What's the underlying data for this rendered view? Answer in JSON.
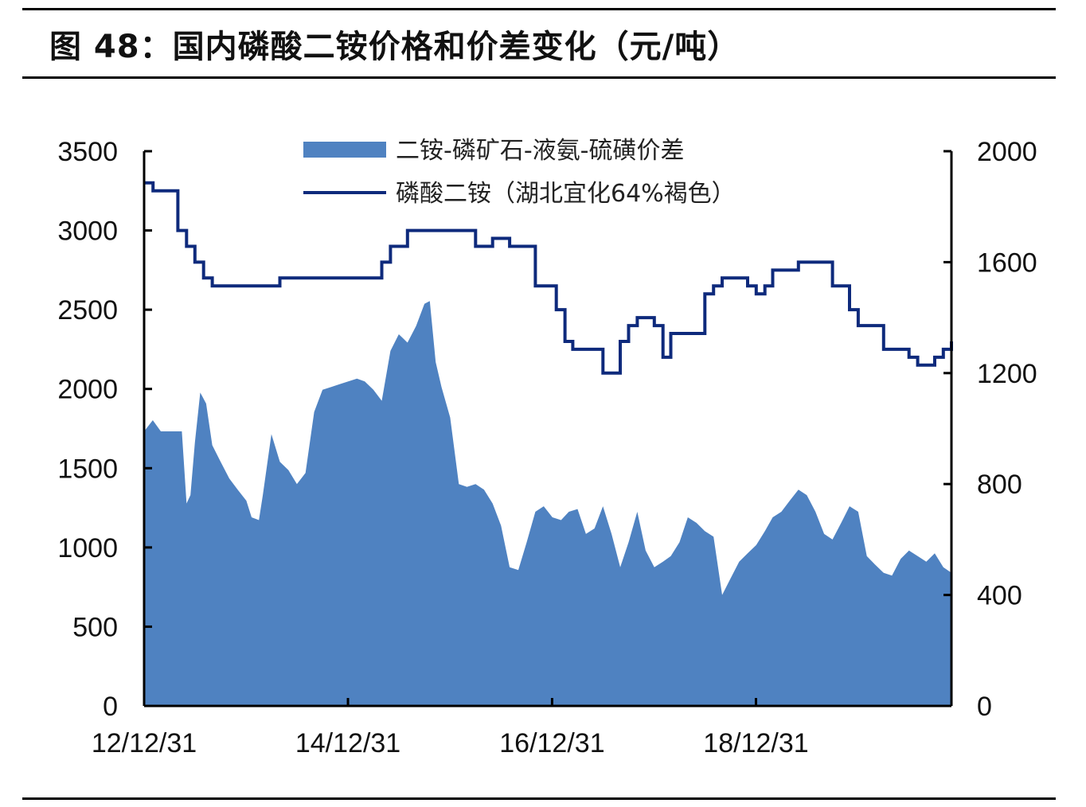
{
  "figure": {
    "title": "图 48：国内磷酸二铵价格和价差变化（元/吨）"
  },
  "colors": {
    "area": "#4f82c1",
    "line": "#0e2a7c",
    "axis": "#000000"
  },
  "chart_data": {
    "type": "area",
    "x_tick_labels": [
      "12/12/31",
      "14/12/31",
      "16/12/31",
      "18/12/31"
    ],
    "x_tick_dates": [
      "2012-12-31",
      "2014-12-31",
      "2016-12-31",
      "2018-12-31"
    ],
    "x_range": [
      "2012-12-31",
      "2020-11-30"
    ],
    "y_left": {
      "range": [
        0,
        3500
      ],
      "ticks": [
        "0",
        "500",
        "1000",
        "1500",
        "2000",
        "2500",
        "3000",
        "3500"
      ]
    },
    "y_right": {
      "range": [
        0,
        2000
      ],
      "ticks": [
        "0",
        "400",
        "800",
        "1200",
        "1600",
        "2000"
      ]
    },
    "legend": "top-center",
    "grid": false,
    "series": [
      {
        "name": "二铵-磷矿石-液氨-硫磺价差",
        "kind": "area",
        "axis": "right",
        "points": [
          [
            "2012-12-31",
            990
          ],
          [
            "2013-01-31",
            1030
          ],
          [
            "2013-03-01",
            990
          ],
          [
            "2013-05-15",
            990
          ],
          [
            "2013-06-01",
            730
          ],
          [
            "2013-06-15",
            760
          ],
          [
            "2013-07-01",
            950
          ],
          [
            "2013-07-20",
            1130
          ],
          [
            "2013-08-10",
            1090
          ],
          [
            "2013-09-01",
            940
          ],
          [
            "2013-10-01",
            880
          ],
          [
            "2013-11-01",
            820
          ],
          [
            "2013-12-01",
            780
          ],
          [
            "2014-01-01",
            740
          ],
          [
            "2014-01-20",
            680
          ],
          [
            "2014-02-15",
            670
          ],
          [
            "2014-03-01",
            760
          ],
          [
            "2014-04-01",
            980
          ],
          [
            "2014-05-01",
            880
          ],
          [
            "2014-06-01",
            850
          ],
          [
            "2014-07-01",
            800
          ],
          [
            "2014-08-01",
            840
          ],
          [
            "2014-09-01",
            1060
          ],
          [
            "2014-10-01",
            1140
          ],
          [
            "2014-11-01",
            1150
          ],
          [
            "2014-12-01",
            1160
          ],
          [
            "2015-01-01",
            1170
          ],
          [
            "2015-02-01",
            1180
          ],
          [
            "2015-03-01",
            1170
          ],
          [
            "2015-04-01",
            1140
          ],
          [
            "2015-05-01",
            1100
          ],
          [
            "2015-06-01",
            1280
          ],
          [
            "2015-07-01",
            1340
          ],
          [
            "2015-08-01",
            1310
          ],
          [
            "2015-09-01",
            1370
          ],
          [
            "2015-10-01",
            1450
          ],
          [
            "2015-10-20",
            1460
          ],
          [
            "2015-11-10",
            1240
          ],
          [
            "2015-12-01",
            1150
          ],
          [
            "2016-01-01",
            1040
          ],
          [
            "2016-02-01",
            800
          ],
          [
            "2016-03-01",
            790
          ],
          [
            "2016-04-01",
            800
          ],
          [
            "2016-05-01",
            780
          ],
          [
            "2016-06-01",
            730
          ],
          [
            "2016-07-01",
            650
          ],
          [
            "2016-08-01",
            500
          ],
          [
            "2016-09-01",
            490
          ],
          [
            "2016-10-01",
            590
          ],
          [
            "2016-11-01",
            700
          ],
          [
            "2016-12-01",
            720
          ],
          [
            "2017-01-01",
            680
          ],
          [
            "2017-02-01",
            670
          ],
          [
            "2017-03-01",
            700
          ],
          [
            "2017-04-01",
            710
          ],
          [
            "2017-05-01",
            620
          ],
          [
            "2017-06-01",
            640
          ],
          [
            "2017-07-01",
            720
          ],
          [
            "2017-08-01",
            620
          ],
          [
            "2017-09-01",
            500
          ],
          [
            "2017-10-01",
            590
          ],
          [
            "2017-11-01",
            700
          ],
          [
            "2017-12-01",
            560
          ],
          [
            "2018-01-01",
            500
          ],
          [
            "2018-02-01",
            520
          ],
          [
            "2018-03-01",
            540
          ],
          [
            "2018-04-01",
            590
          ],
          [
            "2018-05-01",
            680
          ],
          [
            "2018-06-01",
            660
          ],
          [
            "2018-07-01",
            630
          ],
          [
            "2018-08-01",
            610
          ],
          [
            "2018-09-01",
            400
          ],
          [
            "2018-10-01",
            460
          ],
          [
            "2018-11-01",
            520
          ],
          [
            "2018-12-01",
            550
          ],
          [
            "2019-01-01",
            580
          ],
          [
            "2019-02-01",
            630
          ],
          [
            "2019-03-01",
            680
          ],
          [
            "2019-04-01",
            700
          ],
          [
            "2019-05-01",
            740
          ],
          [
            "2019-06-01",
            780
          ],
          [
            "2019-07-01",
            760
          ],
          [
            "2019-08-01",
            700
          ],
          [
            "2019-09-01",
            620
          ],
          [
            "2019-10-01",
            600
          ],
          [
            "2019-11-01",
            660
          ],
          [
            "2019-12-01",
            720
          ],
          [
            "2020-01-01",
            700
          ],
          [
            "2020-02-01",
            540
          ],
          [
            "2020-03-01",
            510
          ],
          [
            "2020-04-01",
            480
          ],
          [
            "2020-05-01",
            470
          ],
          [
            "2020-06-01",
            530
          ],
          [
            "2020-07-01",
            560
          ],
          [
            "2020-08-01",
            540
          ],
          [
            "2020-09-01",
            520
          ],
          [
            "2020-10-01",
            550
          ],
          [
            "2020-11-01",
            500
          ],
          [
            "2020-11-30",
            480
          ]
        ]
      },
      {
        "name": "磷酸二铵（湖北宜化64%褐色）",
        "kind": "line",
        "axis": "left",
        "points": [
          [
            "2012-12-31",
            3300
          ],
          [
            "2013-02-01",
            3250
          ],
          [
            "2013-05-01",
            3000
          ],
          [
            "2013-06-01",
            2900
          ],
          [
            "2013-07-01",
            2800
          ],
          [
            "2013-08-01",
            2700
          ],
          [
            "2013-09-01",
            2650
          ],
          [
            "2014-04-01",
            2650
          ],
          [
            "2014-05-01",
            2700
          ],
          [
            "2015-04-01",
            2700
          ],
          [
            "2015-05-01",
            2800
          ],
          [
            "2015-06-01",
            2900
          ],
          [
            "2015-08-01",
            3000
          ],
          [
            "2016-03-01",
            3000
          ],
          [
            "2016-04-01",
            2900
          ],
          [
            "2016-06-01",
            2950
          ],
          [
            "2016-08-01",
            2900
          ],
          [
            "2016-10-01",
            2900
          ],
          [
            "2016-11-01",
            2650
          ],
          [
            "2016-12-15",
            2650
          ],
          [
            "2017-01-15",
            2500
          ],
          [
            "2017-02-15",
            2300
          ],
          [
            "2017-03-15",
            2250
          ],
          [
            "2017-05-01",
            2250
          ],
          [
            "2017-06-01",
            2250
          ],
          [
            "2017-07-01",
            2100
          ],
          [
            "2017-08-01",
            2100
          ],
          [
            "2017-09-01",
            2300
          ],
          [
            "2017-10-01",
            2400
          ],
          [
            "2017-11-01",
            2450
          ],
          [
            "2018-01-01",
            2400
          ],
          [
            "2018-02-01",
            2200
          ],
          [
            "2018-03-01",
            2350
          ],
          [
            "2018-06-01",
            2350
          ],
          [
            "2018-07-01",
            2600
          ],
          [
            "2018-08-01",
            2650
          ],
          [
            "2018-09-01",
            2700
          ],
          [
            "2018-11-01",
            2700
          ],
          [
            "2018-12-01",
            2650
          ],
          [
            "2019-01-01",
            2600
          ],
          [
            "2019-02-01",
            2650
          ],
          [
            "2019-03-01",
            2750
          ],
          [
            "2019-05-01",
            2750
          ],
          [
            "2019-06-01",
            2800
          ],
          [
            "2019-09-01",
            2800
          ],
          [
            "2019-10-01",
            2650
          ],
          [
            "2019-11-01",
            2650
          ],
          [
            "2019-12-01",
            2500
          ],
          [
            "2020-01-01",
            2400
          ],
          [
            "2020-02-01",
            2400
          ],
          [
            "2020-03-01",
            2400
          ],
          [
            "2020-04-01",
            2250
          ],
          [
            "2020-06-01",
            2250
          ],
          [
            "2020-07-01",
            2200
          ],
          [
            "2020-08-01",
            2150
          ],
          [
            "2020-09-01",
            2150
          ],
          [
            "2020-10-01",
            2200
          ],
          [
            "2020-11-01",
            2250
          ],
          [
            "2020-11-30",
            2300
          ]
        ]
      }
    ]
  }
}
